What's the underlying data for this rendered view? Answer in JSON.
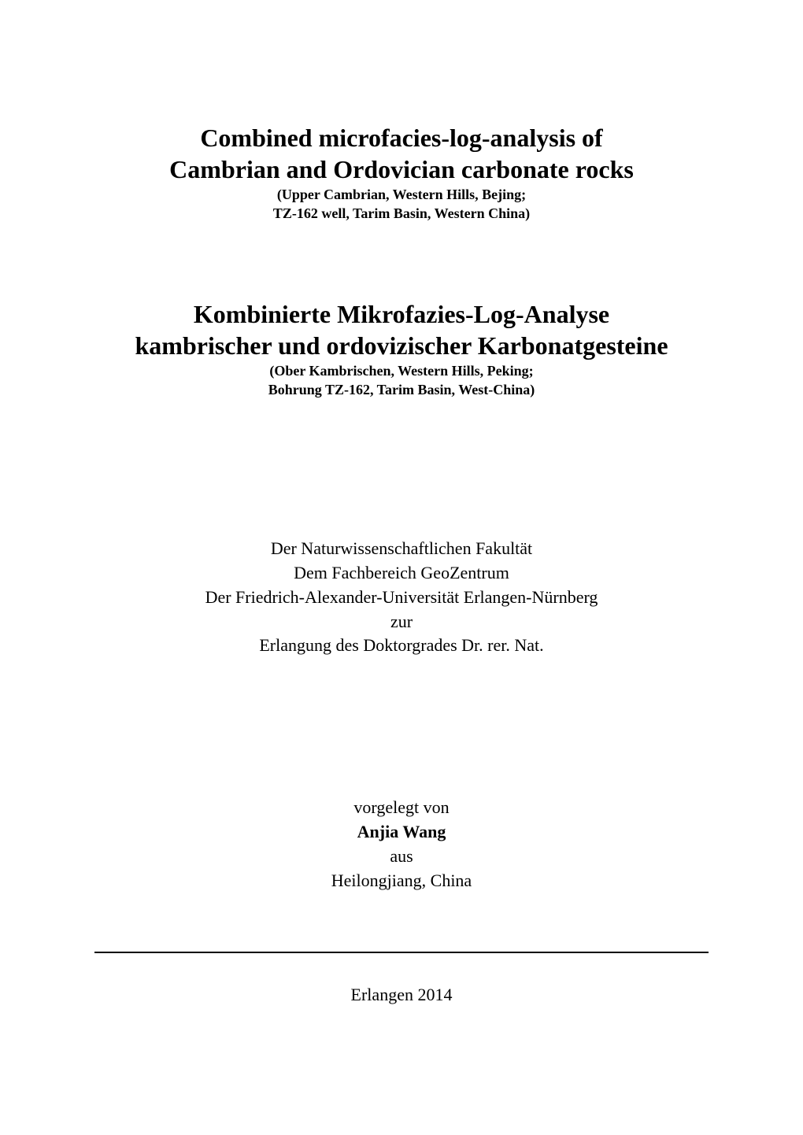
{
  "title_en": {
    "line1": "Combined microfacies-log-analysis of",
    "line2": "Cambrian and Ordovician carbonate rocks",
    "sub1": "(Upper Cambrian, Western Hills, Bejing;",
    "sub2": "TZ-162 well, Tarim Basin, Western China)"
  },
  "title_de": {
    "line1": "Kombinierte Mikrofazies-Log-Analyse",
    "line2": "kambrischer und ordovizischer Karbonatgesteine",
    "sub1": "(Ober Kambrischen, Western Hills, Peking;",
    "sub2": "Bohrung TZ-162, Tarim Basin, West-China)"
  },
  "affiliation": {
    "line1": "Der Naturwissenschaftlichen Fakultät",
    "line2": "Dem Fachbereich GeoZentrum",
    "line3": "Der Friedrich-Alexander-Universität Erlangen-Nürnberg",
    "line4": "zur",
    "line5": "Erlangung des Doktorgrades Dr. rer. Nat."
  },
  "author": {
    "presented": "vorgelegt von",
    "name": "Anjia Wang",
    "from": "aus",
    "origin": "Heilongjiang, China"
  },
  "footer": {
    "text": "Erlangen 2014"
  }
}
